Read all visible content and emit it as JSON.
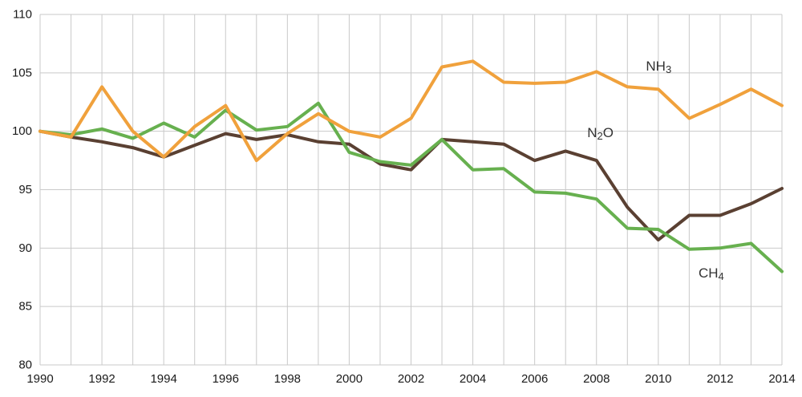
{
  "chart_data": {
    "type": "line",
    "title": "",
    "xlabel": "",
    "ylabel": "",
    "x": [
      1990,
      1991,
      1992,
      1993,
      1994,
      1995,
      1996,
      1997,
      1998,
      1999,
      2000,
      2001,
      2002,
      2003,
      2004,
      2005,
      2006,
      2007,
      2008,
      2009,
      2010,
      2011,
      2012,
      2013,
      2014
    ],
    "xlim": [
      1990,
      2014
    ],
    "ylim": [
      80,
      110
    ],
    "y_ticks": [
      80,
      85,
      90,
      95,
      100,
      105,
      110
    ],
    "x_tick_step": 2,
    "grid": true,
    "legend_position": "inline-labels",
    "draw_order": [
      1,
      2,
      0
    ],
    "series": [
      {
        "name": "NH3",
        "label_parts": [
          {
            "t": "NH",
            "sub": false
          },
          {
            "t": "3",
            "sub": true
          }
        ],
        "color": "#F0A13C",
        "values": [
          100,
          99.5,
          103.8,
          100.0,
          97.8,
          100.4,
          102.2,
          97.5,
          99.8,
          101.5,
          100.0,
          99.5,
          101.1,
          105.5,
          106.0,
          104.2,
          104.1,
          104.2,
          105.1,
          103.8,
          103.6,
          101.1,
          102.3,
          103.6,
          102.2
        ],
        "label_anchor": {
          "x": 2009.6,
          "y": 105.6
        }
      },
      {
        "name": "N2O",
        "label_parts": [
          {
            "t": "N",
            "sub": false
          },
          {
            "t": "2",
            "sub": true
          },
          {
            "t": "O",
            "sub": false
          }
        ],
        "color": "#5A4032",
        "values": [
          100,
          99.5,
          99.1,
          98.6,
          97.8,
          98.8,
          99.8,
          99.3,
          99.7,
          99.1,
          98.9,
          97.2,
          96.7,
          99.3,
          99.1,
          98.9,
          97.5,
          98.3,
          97.5,
          93.5,
          90.7,
          92.8,
          92.8,
          93.8,
          95.1
        ],
        "label_anchor": {
          "x": 2007.7,
          "y": 99.9
        }
      },
      {
        "name": "CH4",
        "label_parts": [
          {
            "t": "CH",
            "sub": false
          },
          {
            "t": "4",
            "sub": true
          }
        ],
        "color": "#67B04F",
        "values": [
          100,
          99.7,
          100.2,
          99.4,
          100.7,
          99.5,
          101.8,
          100.1,
          100.4,
          102.4,
          98.2,
          97.4,
          97.1,
          99.3,
          96.7,
          96.8,
          94.8,
          94.7,
          94.2,
          91.7,
          91.6,
          89.9,
          90.0,
          90.4,
          88.0
        ],
        "label_anchor": {
          "x": 2011.3,
          "y": 87.9
        }
      }
    ]
  },
  "style": {
    "grid_color": "#c9c9c9",
    "text_color": "#1a1a1a",
    "line_width": 4,
    "tick_font_size": 15,
    "label_font_size": 17,
    "label_sub_font_size": 13
  }
}
